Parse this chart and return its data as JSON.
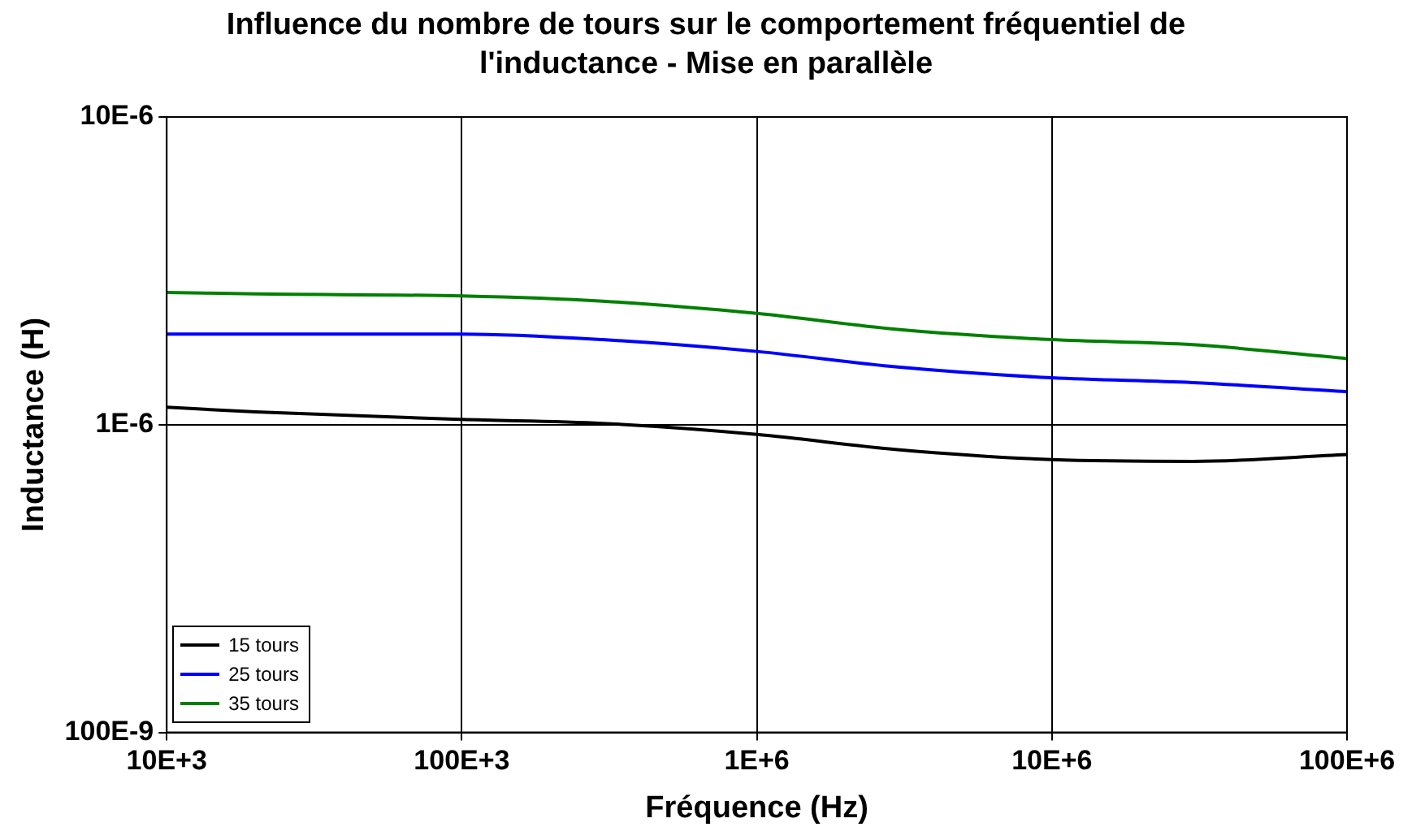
{
  "chart_data": {
    "type": "line",
    "title": "Influence du nombre de tours sur le comportement fréquentiel de l'inductance - Mise en parallèle",
    "xlabel": "Fréquence (Hz)",
    "ylabel": "Inductance (H)",
    "log": "xy",
    "grid": true,
    "legend": "bottom left",
    "marker": "none",
    "line_style": "solid",
    "x": [
      10000,
      20000,
      100000,
      300000,
      1000000,
      3000000,
      10000000,
      30000000,
      100000000
    ],
    "xlim": [
      10000,
      100000000
    ],
    "xticks": [
      {
        "value": 10000,
        "label": "10E+3"
      },
      {
        "value": 100000,
        "label": "100E+3"
      },
      {
        "value": 1000000,
        "label": "1E+6"
      },
      {
        "value": 10000000,
        "label": "10E+6"
      },
      {
        "value": 100000000,
        "label": "100E+6"
      }
    ],
    "ylim": [
      1e-07,
      1e-05
    ],
    "yticks": [
      {
        "value": 1e-07,
        "label": "100E-9"
      },
      {
        "value": 1e-06,
        "label": "1E-6"
      },
      {
        "value": 1e-05,
        "label": "10E-6"
      }
    ],
    "series": [
      {
        "name": "15 tours",
        "color": "#000000",
        "values": [
          1.14e-06,
          1.1e-06,
          1.04e-06,
          1.01e-06,
          9.3e-07,
          8.3e-07,
          7.7e-07,
          7.6e-07,
          8e-07
        ]
      },
      {
        "name": "25 tours",
        "color": "#0000ff",
        "values": [
          1.97e-06,
          1.97e-06,
          1.97e-06,
          1.89e-06,
          1.73e-06,
          1.54e-06,
          1.42e-06,
          1.37e-06,
          1.28e-06
        ]
      },
      {
        "name": "35 tours",
        "color": "#008000",
        "values": [
          2.69e-06,
          2.66e-06,
          2.62e-06,
          2.52e-06,
          2.3e-06,
          2.04e-06,
          1.89e-06,
          1.82e-06,
          1.64e-06
        ]
      }
    ]
  }
}
